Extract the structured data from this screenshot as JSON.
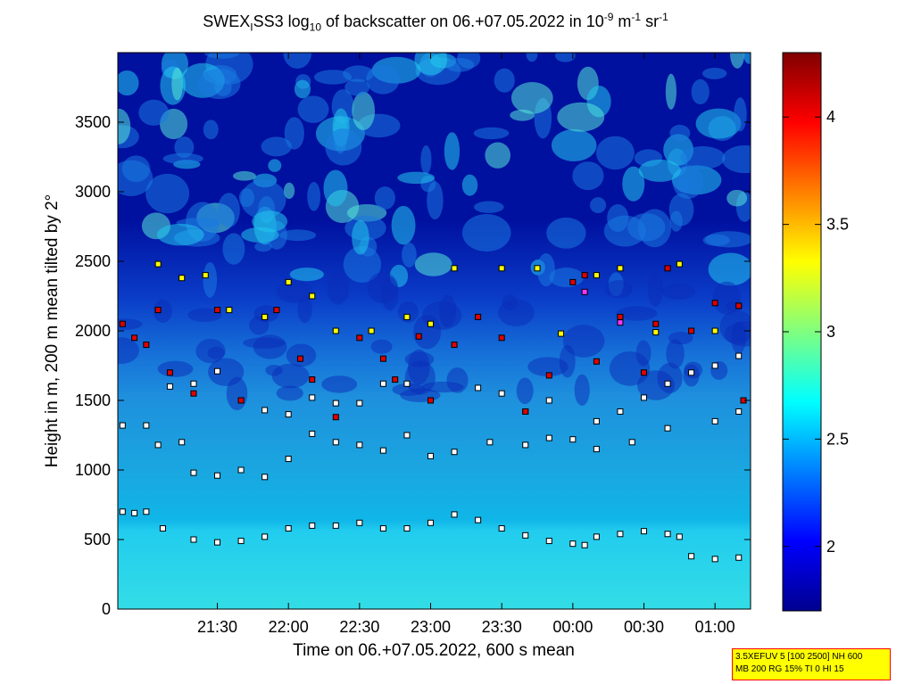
{
  "chart_data": {
    "type": "heatmap",
    "title_parts": {
      "prefix": "SWEX",
      "sub1": "I",
      "mid": "SS3 log",
      "sub2": "10",
      "rest": " of backscatter on 06.+07.05.2022 in 10",
      "sup1": "-9",
      "unit1": " m",
      "sup2": "-1",
      "unit2": " sr",
      "sup3": "-1"
    },
    "xlabel": "Time on 06.+07.05.2022, 600 s mean",
    "ylabel": "Height in m, 200 m mean tilted by 2°",
    "x_ticks": [
      "21:30",
      "22:00",
      "22:30",
      "23:00",
      "23:30",
      "00:00",
      "00:30",
      "01:00"
    ],
    "x_tick_minutes": [
      30,
      60,
      90,
      120,
      150,
      180,
      210,
      240
    ],
    "x_range_minutes": [
      -12,
      255
    ],
    "x_origin_label": "21:00",
    "y_ticks": [
      0,
      500,
      1000,
      1500,
      2000,
      2500,
      3000,
      3500
    ],
    "ylim": [
      0,
      4000
    ],
    "colorbar": {
      "ticks": [
        2,
        2.5,
        3,
        3.5,
        4
      ],
      "range": [
        1.7,
        4.3
      ]
    },
    "colors": {
      "low": "#00008f",
      "mid": "#00ffff",
      "high": "#800000"
    },
    "layers": {
      "white": [
        [
          -10,
          700
        ],
        [
          -5,
          690
        ],
        [
          0,
          700
        ],
        [
          7,
          580
        ],
        [
          20,
          500
        ],
        [
          30,
          480
        ],
        [
          40,
          490
        ],
        [
          50,
          520
        ],
        [
          60,
          580
        ],
        [
          70,
          600
        ],
        [
          80,
          600
        ],
        [
          90,
          620
        ],
        [
          100,
          580
        ],
        [
          110,
          580
        ],
        [
          120,
          620
        ],
        [
          130,
          680
        ],
        [
          140,
          640
        ],
        [
          150,
          580
        ],
        [
          160,
          530
        ],
        [
          170,
          490
        ],
        [
          180,
          470
        ],
        [
          185,
          460
        ],
        [
          190,
          520
        ],
        [
          200,
          540
        ],
        [
          210,
          560
        ],
        [
          220,
          540
        ],
        [
          225,
          520
        ],
        [
          230,
          380
        ],
        [
          240,
          360
        ],
        [
          250,
          370
        ],
        [
          -10,
          1320
        ],
        [
          0,
          1320
        ],
        [
          5,
          1180
        ],
        [
          15,
          1200
        ],
        [
          20,
          980
        ],
        [
          30,
          960
        ],
        [
          40,
          1000
        ],
        [
          50,
          950
        ],
        [
          60,
          1080
        ],
        [
          70,
          1260
        ],
        [
          80,
          1200
        ],
        [
          90,
          1180
        ],
        [
          100,
          1140
        ],
        [
          110,
          1250
        ],
        [
          120,
          1100
        ],
        [
          130,
          1130
        ],
        [
          145,
          1200
        ],
        [
          160,
          1180
        ],
        [
          170,
          1230
        ],
        [
          180,
          1220
        ],
        [
          190,
          1150
        ],
        [
          205,
          1200
        ],
        [
          220,
          1300
        ],
        [
          240,
          1350
        ],
        [
          250,
          1420
        ],
        [
          10,
          1600
        ],
        [
          20,
          1620
        ],
        [
          30,
          1710
        ],
        [
          50,
          1430
        ],
        [
          60,
          1400
        ],
        [
          70,
          1520
        ],
        [
          80,
          1480
        ],
        [
          90,
          1480
        ],
        [
          100,
          1620
        ],
        [
          110,
          1620
        ],
        [
          120,
          1500
        ],
        [
          140,
          1590
        ],
        [
          150,
          1550
        ],
        [
          160,
          1420
        ],
        [
          170,
          1500
        ],
        [
          190,
          1350
        ],
        [
          200,
          1420
        ],
        [
          210,
          1520
        ],
        [
          220,
          1620
        ],
        [
          230,
          1700
        ],
        [
          240,
          1750
        ],
        [
          250,
          1820
        ]
      ],
      "red": [
        [
          -10,
          2050
        ],
        [
          -5,
          1950
        ],
        [
          0,
          1900
        ],
        [
          5,
          2150
        ],
        [
          10,
          1700
        ],
        [
          20,
          1550
        ],
        [
          30,
          2150
        ],
        [
          40,
          1500
        ],
        [
          50,
          2100
        ],
        [
          55,
          2150
        ],
        [
          65,
          1800
        ],
        [
          70,
          1650
        ],
        [
          80,
          1380
        ],
        [
          90,
          1950
        ],
        [
          100,
          1800
        ],
        [
          105,
          1650
        ],
        [
          115,
          1960
        ],
        [
          120,
          1500
        ],
        [
          130,
          1900
        ],
        [
          140,
          2100
        ],
        [
          150,
          1950
        ],
        [
          160,
          1420
        ],
        [
          170,
          1680
        ],
        [
          180,
          2350
        ],
        [
          185,
          2400
        ],
        [
          190,
          1780
        ],
        [
          200,
          2100
        ],
        [
          210,
          1700
        ],
        [
          215,
          2050
        ],
        [
          220,
          2450
        ],
        [
          230,
          2000
        ],
        [
          240,
          2200
        ],
        [
          250,
          2180
        ],
        [
          252,
          1500
        ]
      ],
      "yellow": [
        [
          5,
          2480
        ],
        [
          15,
          2380
        ],
        [
          25,
          2400
        ],
        [
          35,
          2150
        ],
        [
          50,
          2100
        ],
        [
          60,
          2350
        ],
        [
          70,
          2250
        ],
        [
          80,
          2000
        ],
        [
          95,
          2000
        ],
        [
          110,
          2100
        ],
        [
          120,
          2050
        ],
        [
          130,
          2450
        ],
        [
          150,
          2450
        ],
        [
          165,
          2450
        ],
        [
          175,
          1980
        ],
        [
          190,
          2400
        ],
        [
          200,
          2450
        ],
        [
          215,
          1990
        ],
        [
          225,
          2480
        ],
        [
          240,
          2000
        ]
      ],
      "magenta": [
        [
          185,
          2280
        ],
        [
          200,
          2060
        ]
      ]
    },
    "legend_placement": "none",
    "grid": false
  },
  "annotation_box": {
    "line1": "3.5XEFUV 5 [100 2500] NH 600",
    "line2": "MB 200 RG 15% TI 0 HI 15"
  }
}
